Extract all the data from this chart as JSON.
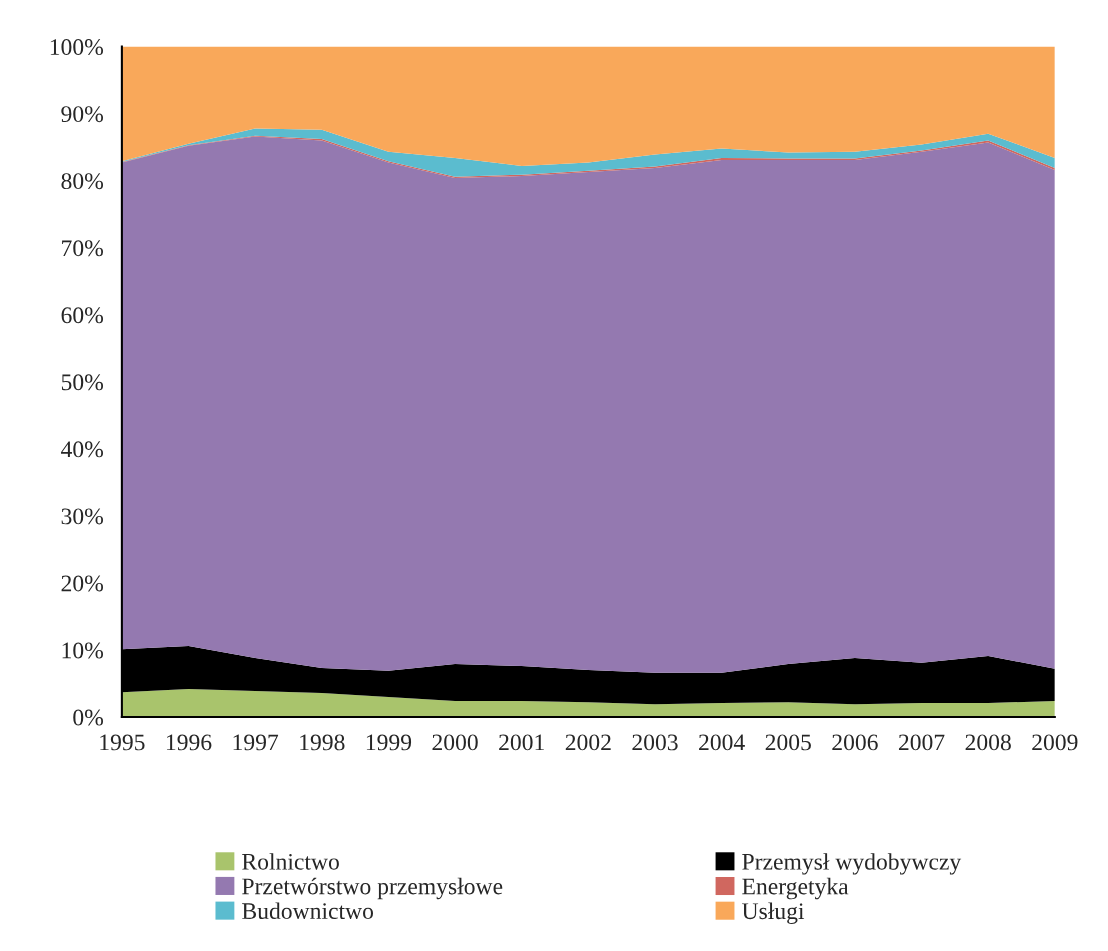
{
  "chart_data": {
    "type": "area",
    "stacked": true,
    "x": [
      1995,
      1996,
      1997,
      1998,
      1999,
      2000,
      2001,
      2002,
      2003,
      2004,
      2005,
      2006,
      2007,
      2008,
      2009
    ],
    "series": [
      {
        "name": "Rolnictwo",
        "color": "#a9c46c",
        "values": [
          3.7,
          4.2,
          3.9,
          3.6,
          3.0,
          2.4,
          2.4,
          2.2,
          1.9,
          2.1,
          2.2,
          1.9,
          2.1,
          2.1,
          2.4
        ]
      },
      {
        "name": "Przemysł wydobywczy",
        "color": "#000000",
        "values": [
          6.4,
          6.4,
          4.9,
          3.7,
          3.9,
          5.5,
          5.2,
          4.8,
          4.7,
          4.5,
          5.7,
          6.9,
          6.0,
          7.0,
          4.8
        ]
      },
      {
        "name": "Przetwórstwo przemysłowe",
        "color": "#9479b0",
        "values": [
          72.6,
          74.6,
          77.8,
          78.7,
          75.8,
          72.5,
          73.1,
          74.3,
          75.3,
          76.5,
          75.2,
          74.3,
          76.2,
          76.6,
          74.4
        ]
      },
      {
        "name": "Energetyka",
        "color": "#d0675f",
        "values": [
          0.1,
          0.1,
          0.1,
          0.2,
          0.2,
          0.2,
          0.2,
          0.2,
          0.2,
          0.3,
          0.2,
          0.2,
          0.2,
          0.3,
          0.3
        ]
      },
      {
        "name": "Budownictwo",
        "color": "#5bbccf",
        "values": [
          0.1,
          0.2,
          1.1,
          1.4,
          1.4,
          2.8,
          1.3,
          1.2,
          1.8,
          1.4,
          0.9,
          1.0,
          0.9,
          1.0,
          1.5
        ]
      },
      {
        "name": "Usługi",
        "color": "#f9a85a",
        "values": [
          17.1,
          14.5,
          12.2,
          12.4,
          15.7,
          16.6,
          17.8,
          17.3,
          16.1,
          15.2,
          15.8,
          15.7,
          14.6,
          13.0,
          16.6
        ]
      }
    ],
    "xlim": [
      1995,
      2009
    ],
    "xticks": [
      1995,
      1996,
      1997,
      1998,
      1999,
      2000,
      2001,
      2002,
      2003,
      2004,
      2005,
      2006,
      2007,
      2008,
      2009
    ],
    "ylim": [
      0,
      100
    ],
    "yticks": [
      {
        "value": 0,
        "label": "0%"
      },
      {
        "value": 10,
        "label": "10%"
      },
      {
        "value": 20,
        "label": "20%"
      },
      {
        "value": 30,
        "label": "30%"
      },
      {
        "value": 40,
        "label": "40%"
      },
      {
        "value": 50,
        "label": "50%"
      },
      {
        "value": 60,
        "label": "60%"
      },
      {
        "value": 70,
        "label": "70%"
      },
      {
        "value": 80,
        "label": "80%"
      },
      {
        "value": 90,
        "label": "90%"
      },
      {
        "value": 100,
        "label": "100%"
      }
    ],
    "grid": false,
    "legend": "bottom"
  }
}
